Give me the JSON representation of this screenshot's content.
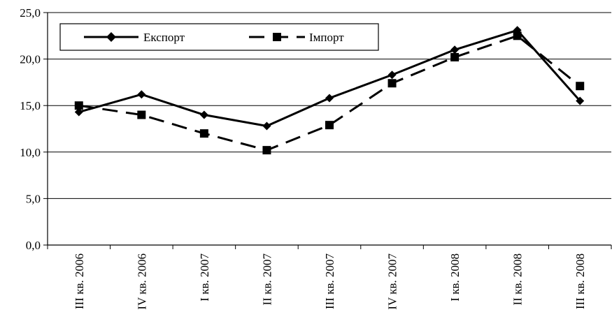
{
  "chart_data": {
    "type": "line",
    "categories": [
      "III кв. 2006",
      "IV кв. 2006",
      "I кв. 2007",
      "II кв. 2007",
      "III кв. 2007",
      "IV кв. 2007",
      "I кв. 2008",
      "II кв. 2008",
      "III кв. 2008"
    ],
    "series": [
      {
        "name": "Експорт",
        "values": [
          14.3,
          16.2,
          14.0,
          12.8,
          15.8,
          18.3,
          21.0,
          23.1,
          15.5
        ],
        "line": "solid",
        "marker": "diamond",
        "color": "#000000"
      },
      {
        "name": "Імпорт",
        "values": [
          15.0,
          14.0,
          12.0,
          10.2,
          12.9,
          17.4,
          20.2,
          22.5,
          17.1
        ],
        "line": "dashed",
        "marker": "square",
        "color": "#000000"
      }
    ],
    "yticks": [
      "0,0",
      "5,0",
      "10,0",
      "15,0",
      "20,0",
      "25,0"
    ],
    "ylim": [
      0,
      25
    ],
    "grid": true,
    "legend_position": "top-left"
  }
}
